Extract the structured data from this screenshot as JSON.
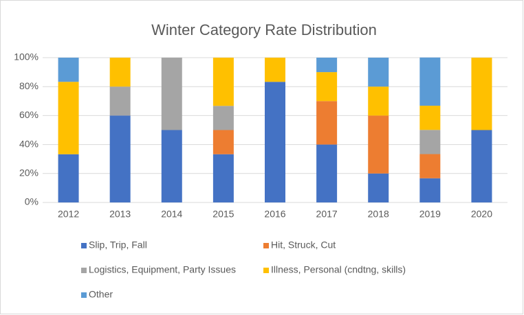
{
  "chart_data": {
    "type": "stacked_bar",
    "title": "Winter Category Rate Distribution",
    "categories": [
      "2012",
      "2013",
      "2014",
      "2015",
      "2016",
      "2017",
      "2018",
      "2019",
      "2020"
    ],
    "series": [
      {
        "name": "Slip, Trip, Fall",
        "color": "#4472c4",
        "values": [
          33.3,
          60,
          50,
          33.3,
          83.3,
          40,
          20,
          16.7,
          50
        ]
      },
      {
        "name": "Hit, Struck, Cut",
        "color": "#ed7d31",
        "values": [
          0,
          0,
          0,
          16.7,
          0,
          30,
          40,
          16.7,
          0
        ]
      },
      {
        "name": "Logistics, Equipment, Party Issues",
        "color": "#a5a5a5",
        "values": [
          0,
          20,
          50,
          16.7,
          0,
          0,
          0,
          16.7,
          0
        ]
      },
      {
        "name": "Illness, Personal (cndtng, skills)",
        "color": "#ffc000",
        "values": [
          50,
          20,
          0,
          33.3,
          16.7,
          20,
          20,
          16.7,
          50
        ]
      },
      {
        "name": "Other",
        "color": "#5b9bd5",
        "values": [
          16.7,
          0,
          0,
          0,
          0,
          10,
          20,
          33.3,
          0
        ]
      }
    ],
    "ylim": [
      0,
      100
    ],
    "yticks": [
      {
        "value": 0,
        "label": "0%"
      },
      {
        "value": 20,
        "label": "20%"
      },
      {
        "value": 40,
        "label": "40%"
      },
      {
        "value": 60,
        "label": "60%"
      },
      {
        "value": 80,
        "label": "80%"
      },
      {
        "value": 100,
        "label": "100%"
      }
    ],
    "grid": true,
    "legend": "bottom"
  }
}
